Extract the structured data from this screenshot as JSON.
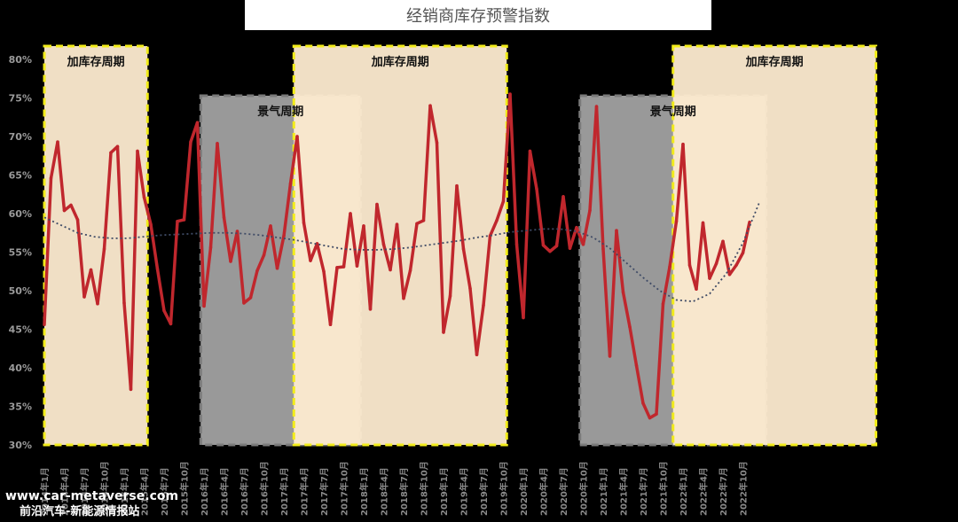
{
  "title": "经销商库存预警指数",
  "watermark": {
    "line1": "www.car-metaverse.com",
    "line2": "前沿汽车-新能源情报站"
  },
  "colors": {
    "main_line": "#c0272d",
    "main_line_light": "#d9534f",
    "trend_line": "#3f4b66",
    "inventory_band_fill": "#fdebd0",
    "inventory_band_border": "#f2ec1a",
    "boom_band_fill": "#b4b4b4",
    "boom_band_border": "#7a7a7a"
  },
  "chart_data": {
    "type": "line",
    "title": "经销商库存预警指数",
    "ylim": [
      30,
      80
    ],
    "yticks": [
      30,
      35,
      40,
      45,
      50,
      55,
      60,
      65,
      70,
      75,
      80
    ],
    "ytick_labels": [
      "30%",
      "35%",
      "40%",
      "45%",
      "50%",
      "55%",
      "60%",
      "65%",
      "70%",
      "75%",
      "80%"
    ],
    "x_tick_labels": [
      "2014年1月",
      "2014年4月",
      "2014年7月",
      "2014年10月",
      "2015年1月",
      "2015年4月",
      "2015年7月",
      "2015年10月",
      "2016年1月",
      "2016年4月",
      "2016年7月",
      "2016年10月",
      "2017年1月",
      "2017年4月",
      "2017年7月",
      "2017年10月",
      "2018年1月",
      "2018年4月",
      "2018年7月",
      "2018年10月",
      "2019年1月",
      "2019年4月",
      "2019年7月",
      "2019年10月",
      "2020年1月",
      "2020年4月",
      "2020年7月",
      "2020年10月",
      "2021年1月",
      "2021年4月",
      "2021年7月",
      "2021年10月",
      "2022年1月",
      "2022年4月",
      "2022年7月",
      "2022年10月"
    ],
    "x_tick_texts": [
      "2014年1月",
      "2014年4月",
      "2014年7月",
      "2014年10月",
      "2015年1月",
      "2015年4月",
      "2015年7月",
      "2015年10月",
      "2016年1月",
      "2016年4月",
      "2016年7月",
      "2016年10月",
      "2017年1月",
      "2017年4月",
      "2017年7月",
      "2017年10月",
      "2018年1月",
      "2018年4月",
      "2018年7月",
      "2018年10月",
      "2019年1月",
      "2019年4月",
      "2019年7月",
      "2019年10月",
      "2020年1月",
      "2020年4月",
      "2020年7月",
      "2020年10月",
      "2021年1月",
      "2021年4月",
      "2021年7月",
      "2021年10月",
      "2022年1月",
      "2022年4月",
      "2022年7月",
      "2022年10月"
    ],
    "series": [
      {
        "type": "line",
        "values": [
          45.6,
          64.6,
          69.3,
          60.4,
          61.1,
          59.2,
          49.2,
          52.7,
          48.3,
          55.4,
          67.9,
          68.7,
          48.4,
          37.2,
          68.1,
          62.1,
          58.6,
          52.8,
          47.4,
          45.7,
          59.0,
          59.2,
          69.3,
          71.8,
          48.0,
          55.6,
          69.1,
          59.5,
          53.8,
          57.7,
          48.4,
          49.1,
          52.6,
          54.6,
          58.4,
          52.9,
          57.1,
          63.9,
          70.0,
          58.8,
          53.9,
          56.1,
          52.5,
          45.6,
          53.0,
          53.1,
          60.0,
          53.2,
          58.4,
          47.6,
          61.2,
          56.0,
          52.7,
          58.6,
          49.0,
          52.6,
          58.7,
          59.1,
          74.0,
          69.2,
          44.6,
          49.3,
          63.6,
          55.4,
          50.3,
          41.7,
          48.1,
          57.1,
          59.1,
          61.6,
          75.5,
          56.0,
          46.5,
          68.1,
          63.2,
          55.9,
          55.1,
          55.8,
          62.2,
          55.5,
          58.2,
          56.0,
          60.4,
          73.9,
          55.4,
          41.5,
          57.8,
          49.8,
          45.3,
          40.3,
          35.4,
          33.5,
          34.0,
          48.3,
          53.1,
          59.0,
          69.0,
          53.3,
          50.2,
          58.8,
          51.6,
          53.5,
          56.4,
          52.1,
          53.3,
          54.9,
          58.9
        ]
      },
      {
        "type": "trendline",
        "style": "dotted",
        "values": [
          59.5,
          58.5,
          57.5,
          57.0,
          56.8,
          56.8,
          57.0,
          57.2,
          57.3,
          57.4,
          57.5,
          57.5,
          57.4,
          57.2,
          56.9,
          56.6,
          56.2,
          55.8,
          55.4,
          55.3,
          55.3,
          55.4,
          55.6,
          55.9,
          56.2,
          56.5,
          56.9,
          57.2,
          57.6,
          57.8,
          58.0,
          58.0,
          57.7,
          56.9,
          55.5,
          53.6,
          51.7,
          50.0,
          48.8,
          48.6,
          49.6,
          52.2,
          56.2,
          61.5
        ],
        "index_step": 2.5
      }
    ],
    "bands": [
      {
        "label": "加库存周期",
        "kind": "inventory",
        "from_index": 0,
        "to_index": 15.5,
        "label_top": true
      },
      {
        "label": "景气周期",
        "kind": "boom",
        "from_index": 23.5,
        "to_index": 47.5,
        "label_top": false
      },
      {
        "label": "加库存周期",
        "kind": "inventory",
        "from_index": 37.5,
        "to_index": 69.5,
        "label_top": true
      },
      {
        "label": "景气周期",
        "kind": "boom",
        "from_index": 80.5,
        "to_index": 108.5,
        "label_top": false
      },
      {
        "label": "加库存周期",
        "kind": "inventory",
        "from_index": 94.5,
        "to_index": 125,
        "label_top": true
      }
    ]
  }
}
